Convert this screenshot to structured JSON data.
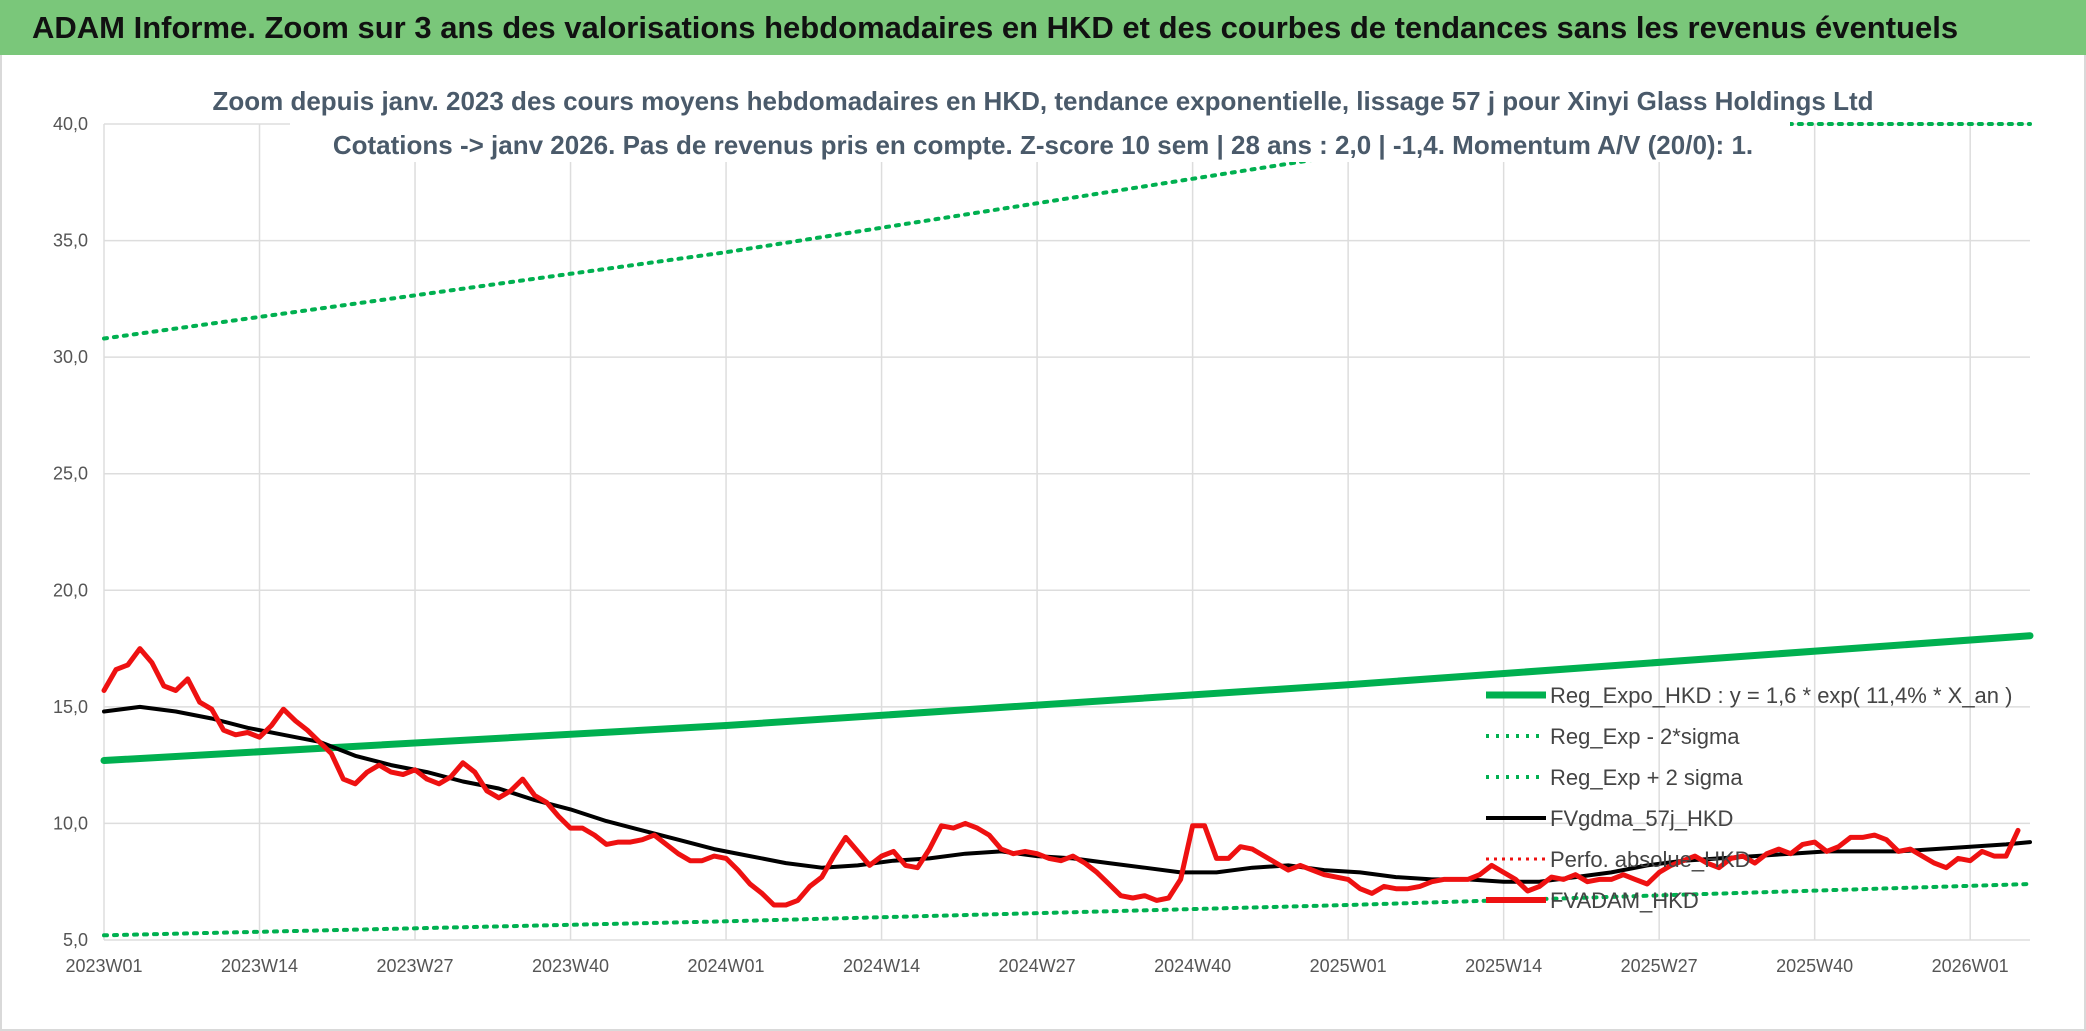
{
  "header": {
    "banner_title": "ADAM Informe. Zoom sur 3 ans des valorisations hebdomadaires en HKD et des courbes de tendances sans les revenus éventuels"
  },
  "colors": {
    "banner_bg": "#7ac77a",
    "regression": "#00b050",
    "sigma_bands": "#00b050",
    "smoothed": "#000000",
    "price": "#ee1111",
    "perfo": "#ee1111",
    "grid": "#dddddd"
  },
  "chart_data": {
    "type": "line",
    "title_lines": [
      "Zoom depuis janv. 2023 des cours moyens hebdomadaires en HKD, tendance exponentielle, lissage 57 j pour Xinyi Glass Holdings Ltd",
      "Cotations -> janv 2026. Pas de revenus pris en compte. Z-score 10 sem | 28 ans : 2,0 | -1,4. Momentum A/V (20/0): 1."
    ],
    "ylim": [
      5,
      40
    ],
    "y_ticks": [
      "5,0",
      "10,0",
      "15,0",
      "20,0",
      "25,0",
      "30,0",
      "35,0",
      "40,0"
    ],
    "x_ticks": [
      "2023W01",
      "2023W14",
      "2023W27",
      "2023W40",
      "2024W01",
      "2024W14",
      "2024W27",
      "2024W40",
      "2025W01",
      "2025W14",
      "2025W27",
      "2025W40",
      "2026W01"
    ],
    "x_range_weeks": [
      0,
      161
    ],
    "grid": true,
    "legend_position": "bottom-right",
    "legend": [
      "Reg_Expo_HKD : y = 1,6 * exp( 11,4% *  X_an )",
      "Reg_Exp - 2*sigma",
      "Reg_Exp + 2 sigma",
      "FVgdma_57j_HKD",
      "Perfo. absolue_HKD",
      "FVADAM_HKD"
    ],
    "series": [
      {
        "name": "Reg_Expo_HKD : y = 1,6 * exp( 11,4% *  X_an )",
        "style": "solid-thick",
        "points": [
          [
            0,
            12.7
          ],
          [
            52,
            14.2
          ],
          [
            104,
            15.95
          ],
          [
            161,
            18.05
          ]
        ]
      },
      {
        "name": "Reg_Exp - 2*sigma",
        "style": "dotted",
        "points": [
          [
            0,
            5.2
          ],
          [
            52,
            5.8
          ],
          [
            104,
            6.5
          ],
          [
            161,
            7.4
          ]
        ]
      },
      {
        "name": "Reg_Exp + 2 sigma",
        "style": "dotted",
        "points": [
          [
            0,
            30.8
          ],
          [
            52,
            34.5
          ],
          [
            104,
            38.7
          ],
          [
            130,
            40.0
          ],
          [
            161,
            40.0
          ]
        ]
      },
      {
        "name": "FVgdma_57j_HKD",
        "style": "solid",
        "points": [
          [
            0,
            14.8
          ],
          [
            3,
            15.0
          ],
          [
            6,
            14.8
          ],
          [
            9,
            14.5
          ],
          [
            12,
            14.1
          ],
          [
            15,
            13.8
          ],
          [
            18,
            13.5
          ],
          [
            21,
            12.9
          ],
          [
            24,
            12.5
          ],
          [
            27,
            12.2
          ],
          [
            30,
            11.8
          ],
          [
            33,
            11.5
          ],
          [
            36,
            11.0
          ],
          [
            39,
            10.6
          ],
          [
            42,
            10.1
          ],
          [
            45,
            9.7
          ],
          [
            48,
            9.3
          ],
          [
            51,
            8.9
          ],
          [
            54,
            8.6
          ],
          [
            57,
            8.3
          ],
          [
            60,
            8.1
          ],
          [
            63,
            8.2
          ],
          [
            66,
            8.4
          ],
          [
            69,
            8.5
          ],
          [
            72,
            8.7
          ],
          [
            75,
            8.8
          ],
          [
            78,
            8.6
          ],
          [
            81,
            8.5
          ],
          [
            84,
            8.3
          ],
          [
            87,
            8.1
          ],
          [
            90,
            7.9
          ],
          [
            93,
            7.9
          ],
          [
            96,
            8.1
          ],
          [
            99,
            8.2
          ],
          [
            102,
            8.0
          ],
          [
            105,
            7.9
          ],
          [
            108,
            7.7
          ],
          [
            111,
            7.6
          ],
          [
            114,
            7.6
          ],
          [
            117,
            7.5
          ],
          [
            120,
            7.5
          ],
          [
            123,
            7.7
          ],
          [
            126,
            7.9
          ],
          [
            129,
            8.2
          ],
          [
            132,
            8.4
          ],
          [
            135,
            8.5
          ],
          [
            138,
            8.6
          ],
          [
            141,
            8.7
          ],
          [
            144,
            8.8
          ],
          [
            147,
            8.8
          ],
          [
            150,
            8.8
          ],
          [
            153,
            8.9
          ],
          [
            156,
            9.0
          ],
          [
            159,
            9.1
          ],
          [
            161,
            9.2
          ]
        ]
      },
      {
        "name": "FVADAM_HKD",
        "style": "solid-thick",
        "points": [
          [
            0,
            15.7
          ],
          [
            1,
            16.6
          ],
          [
            2,
            16.8
          ],
          [
            3,
            17.5
          ],
          [
            4,
            16.9
          ],
          [
            5,
            15.9
          ],
          [
            6,
            15.7
          ],
          [
            7,
            16.2
          ],
          [
            8,
            15.2
          ],
          [
            9,
            14.9
          ],
          [
            10,
            14.0
          ],
          [
            11,
            13.8
          ],
          [
            12,
            13.9
          ],
          [
            13,
            13.7
          ],
          [
            14,
            14.2
          ],
          [
            15,
            14.9
          ],
          [
            16,
            14.4
          ],
          [
            17,
            14.0
          ],
          [
            18,
            13.5
          ],
          [
            19,
            13.0
          ],
          [
            20,
            11.9
          ],
          [
            21,
            11.7
          ],
          [
            22,
            12.2
          ],
          [
            23,
            12.5
          ],
          [
            24,
            12.2
          ],
          [
            25,
            12.1
          ],
          [
            26,
            12.3
          ],
          [
            27,
            11.9
          ],
          [
            28,
            11.7
          ],
          [
            29,
            12.0
          ],
          [
            30,
            12.6
          ],
          [
            31,
            12.2
          ],
          [
            32,
            11.4
          ],
          [
            33,
            11.1
          ],
          [
            34,
            11.4
          ],
          [
            35,
            11.9
          ],
          [
            36,
            11.2
          ],
          [
            37,
            10.9
          ],
          [
            38,
            10.3
          ],
          [
            39,
            9.8
          ],
          [
            40,
            9.8
          ],
          [
            41,
            9.5
          ],
          [
            42,
            9.1
          ],
          [
            43,
            9.2
          ],
          [
            44,
            9.2
          ],
          [
            45,
            9.3
          ],
          [
            46,
            9.5
          ],
          [
            47,
            9.1
          ],
          [
            48,
            8.7
          ],
          [
            49,
            8.4
          ],
          [
            50,
            8.4
          ],
          [
            51,
            8.6
          ],
          [
            52,
            8.5
          ],
          [
            53,
            8.0
          ],
          [
            54,
            7.4
          ],
          [
            55,
            7.0
          ],
          [
            56,
            6.5
          ],
          [
            57,
            6.5
          ],
          [
            58,
            6.7
          ],
          [
            59,
            7.3
          ],
          [
            60,
            7.7
          ],
          [
            61,
            8.6
          ],
          [
            62,
            9.4
          ],
          [
            63,
            8.8
          ],
          [
            64,
            8.2
          ],
          [
            65,
            8.6
          ],
          [
            66,
            8.8
          ],
          [
            67,
            8.2
          ],
          [
            68,
            8.1
          ],
          [
            69,
            8.9
          ],
          [
            70,
            9.9
          ],
          [
            71,
            9.8
          ],
          [
            72,
            10.0
          ],
          [
            73,
            9.8
          ],
          [
            74,
            9.5
          ],
          [
            75,
            8.9
          ],
          [
            76,
            8.7
          ],
          [
            77,
            8.8
          ],
          [
            78,
            8.7
          ],
          [
            79,
            8.5
          ],
          [
            80,
            8.4
          ],
          [
            81,
            8.6
          ],
          [
            82,
            8.3
          ],
          [
            83,
            7.9
          ],
          [
            84,
            7.4
          ],
          [
            85,
            6.9
          ],
          [
            86,
            6.8
          ],
          [
            87,
            6.9
          ],
          [
            88,
            6.7
          ],
          [
            89,
            6.8
          ],
          [
            90,
            7.6
          ],
          [
            91,
            9.9
          ],
          [
            92,
            9.9
          ],
          [
            93,
            8.5
          ],
          [
            94,
            8.5
          ],
          [
            95,
            9.0
          ],
          [
            96,
            8.9
          ],
          [
            97,
            8.6
          ],
          [
            98,
            8.3
          ],
          [
            99,
            8.0
          ],
          [
            100,
            8.2
          ],
          [
            101,
            8.0
          ],
          [
            102,
            7.8
          ],
          [
            103,
            7.7
          ],
          [
            104,
            7.6
          ],
          [
            105,
            7.2
          ],
          [
            106,
            7.0
          ],
          [
            107,
            7.3
          ],
          [
            108,
            7.2
          ],
          [
            109,
            7.2
          ],
          [
            110,
            7.3
          ],
          [
            111,
            7.5
          ],
          [
            112,
            7.6
          ],
          [
            113,
            7.6
          ],
          [
            114,
            7.6
          ],
          [
            115,
            7.8
          ],
          [
            116,
            8.2
          ],
          [
            117,
            7.9
          ],
          [
            118,
            7.6
          ],
          [
            119,
            7.1
          ],
          [
            120,
            7.3
          ],
          [
            121,
            7.7
          ],
          [
            122,
            7.6
          ],
          [
            123,
            7.8
          ],
          [
            124,
            7.5
          ],
          [
            125,
            7.6
          ],
          [
            126,
            7.6
          ],
          [
            127,
            7.8
          ],
          [
            128,
            7.6
          ],
          [
            129,
            7.4
          ],
          [
            130,
            7.9
          ],
          [
            131,
            8.2
          ],
          [
            132,
            8.4
          ],
          [
            133,
            8.6
          ],
          [
            134,
            8.3
          ],
          [
            135,
            8.1
          ],
          [
            136,
            8.5
          ],
          [
            137,
            8.6
          ],
          [
            138,
            8.3
          ],
          [
            139,
            8.7
          ],
          [
            140,
            8.9
          ],
          [
            141,
            8.7
          ],
          [
            142,
            9.1
          ],
          [
            143,
            9.2
          ],
          [
            144,
            8.8
          ],
          [
            145,
            9.0
          ],
          [
            146,
            9.4
          ],
          [
            147,
            9.4
          ],
          [
            148,
            9.5
          ],
          [
            149,
            9.3
          ],
          [
            150,
            8.8
          ],
          [
            151,
            8.9
          ],
          [
            152,
            8.6
          ],
          [
            153,
            8.3
          ],
          [
            154,
            8.1
          ],
          [
            155,
            8.5
          ],
          [
            156,
            8.4
          ],
          [
            157,
            8.8
          ],
          [
            158,
            8.6
          ],
          [
            159,
            8.6
          ],
          [
            160,
            9.7
          ]
        ]
      }
    ]
  }
}
